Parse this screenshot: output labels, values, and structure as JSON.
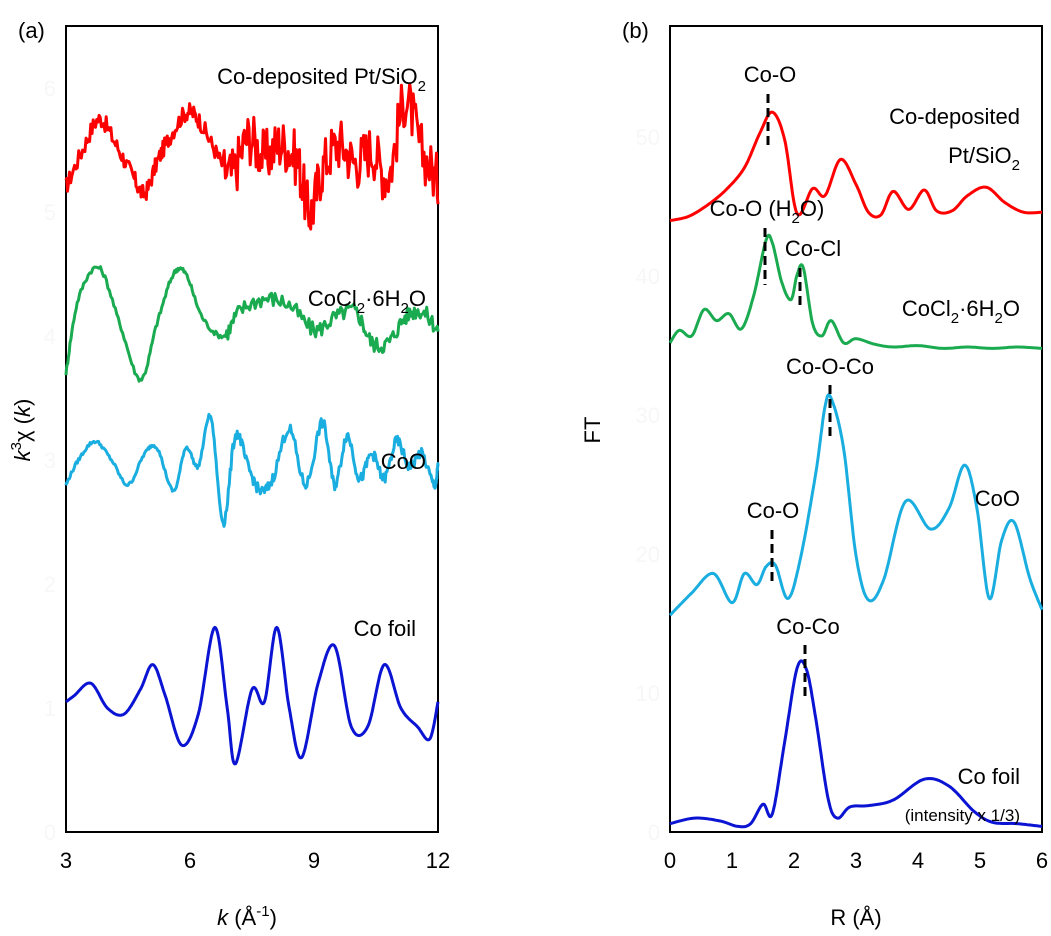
{
  "figure": {
    "panels": [
      {
        "panel_label": "(a)",
        "xlabel_italic": "k",
        "xlabel_rest": " (Å",
        "xlabel_sup": "-1",
        "xlabel_end": ")",
        "ylabel_pre": "k",
        "ylabel_sup": "3",
        "ylabel_mid": "χ (",
        "ylabel_k": "k",
        "ylabel_end": ")",
        "xticks": [
          "3",
          "6",
          "9",
          "12"
        ],
        "yticks": [
          "0",
          "1",
          "2",
          "3",
          "4",
          "5",
          "6"
        ],
        "curve_labels": [
          {
            "id": "co-pt",
            "parts": [
              {
                "t": "Co-deposited Pt/SiO"
              },
              {
                "t": "2",
                "sub": true
              }
            ]
          },
          {
            "id": "cocl2",
            "parts": [
              {
                "t": "CoCl"
              },
              {
                "t": "2",
                "sub": true
              },
              {
                "t": "·6H"
              },
              {
                "t": "2",
                "sub": true
              },
              {
                "t": "O"
              }
            ]
          },
          {
            "id": "coo",
            "parts": [
              {
                "t": "CoO"
              }
            ]
          },
          {
            "id": "cofoil",
            "parts": [
              {
                "t": "Co foil"
              }
            ]
          }
        ]
      },
      {
        "panel_label": "(b)",
        "xlabel": "R (Å)",
        "ylabel": "FT",
        "xticks": [
          "0",
          "1",
          "2",
          "3",
          "4",
          "5",
          "6"
        ],
        "yticks": [
          "0",
          "10",
          "20",
          "30",
          "40",
          "50"
        ],
        "curve_labels": [
          {
            "id": "co-pt-1",
            "parts": [
              {
                "t": "Co-deposited"
              }
            ]
          },
          {
            "id": "co-pt-2",
            "parts": [
              {
                "t": "Pt/SiO"
              },
              {
                "t": "2",
                "sub": true
              }
            ]
          },
          {
            "id": "cocl2",
            "parts": [
              {
                "t": "CoCl"
              },
              {
                "t": "2",
                "sub": true
              },
              {
                "t": "·6H"
              },
              {
                "t": "2",
                "sub": true
              },
              {
                "t": "O"
              }
            ]
          },
          {
            "id": "coo",
            "parts": [
              {
                "t": "CoO"
              }
            ]
          },
          {
            "id": "cofoil",
            "parts": [
              {
                "t": "Co foil"
              }
            ]
          },
          {
            "id": "cofoil-note",
            "parts": [
              {
                "t": "(intensity x 1/3)"
              }
            ]
          }
        ],
        "annotations": [
          {
            "id": "ann-coo-pt",
            "parts": [
              {
                "t": "Co-O"
              }
            ]
          },
          {
            "id": "ann-coo-h2o",
            "parts": [
              {
                "t": "Co-O (H"
              },
              {
                "t": "2",
                "sub": true
              },
              {
                "t": "O)"
              }
            ]
          },
          {
            "id": "ann-cocl",
            "parts": [
              {
                "t": "Co-Cl"
              }
            ]
          },
          {
            "id": "ann-cooco",
            "parts": [
              {
                "t": "Co-O-Co"
              }
            ]
          },
          {
            "id": "ann-coo-coo",
            "parts": [
              {
                "t": "Co-O"
              }
            ]
          },
          {
            "id": "ann-coco",
            "parts": [
              {
                "t": "Co-Co"
              }
            ]
          }
        ]
      }
    ]
  },
  "chart_data": [
    {
      "type": "line",
      "panel": "(a)",
      "xlim": [
        3,
        12
      ],
      "ylim": [
        0,
        6.5
      ],
      "grid": false,
      "series": [
        {
          "name": "Co-deposited Pt/SiO2",
          "color": "#ff0000",
          "noise": 0.1,
          "x": [
            3,
            3.4,
            3.8,
            4.2,
            4.6,
            4.9,
            5.2,
            5.5,
            5.9,
            6.2,
            6.6,
            7.0,
            7.4,
            7.8,
            8.2,
            8.6,
            8.9,
            9.2,
            9.6,
            10.0,
            10.4,
            10.8,
            11.2,
            11.6,
            12
          ],
          "y": [
            5.2,
            5.5,
            5.75,
            5.55,
            5.3,
            5.15,
            5.4,
            5.6,
            5.8,
            5.75,
            5.5,
            5.3,
            5.6,
            5.45,
            5.55,
            5.4,
            5.0,
            5.35,
            5.55,
            5.4,
            5.5,
            5.3,
            5.9,
            5.5,
            5.25
          ]
        },
        {
          "name": "CoCl2·6H2O",
          "color": "#1aaa50",
          "noise": 0.03,
          "x": [
            3,
            3.3,
            3.8,
            4.3,
            4.8,
            5.2,
            5.6,
            5.9,
            6.3,
            6.8,
            7.2,
            7.8,
            8.4,
            9.0,
            9.5,
            10.0,
            10.4,
            10.8,
            11.2,
            11.6,
            12
          ],
          "y": [
            3.7,
            4.3,
            4.55,
            4.1,
            3.65,
            4.1,
            4.5,
            4.5,
            4.15,
            4.0,
            4.2,
            4.3,
            4.25,
            4.05,
            4.15,
            4.2,
            3.95,
            3.95,
            4.15,
            4.2,
            4.05
          ]
        },
        {
          "name": "CoO",
          "color": "#1aaee0",
          "noise": 0.02,
          "x": [
            3,
            3.3,
            3.7,
            4.1,
            4.5,
            4.9,
            5.2,
            5.6,
            5.9,
            6.2,
            6.5,
            6.8,
            7.1,
            7.4,
            7.7,
            8.0,
            8.4,
            8.8,
            9.2,
            9.5,
            9.8,
            10.1,
            10.4,
            10.7,
            11.0,
            11.3,
            11.6,
            11.9,
            12
          ],
          "y": [
            2.8,
            3.0,
            3.15,
            3.0,
            2.8,
            3.05,
            3.1,
            2.75,
            3.1,
            2.95,
            3.35,
            2.5,
            3.2,
            2.95,
            2.75,
            2.85,
            3.25,
            2.8,
            3.3,
            2.8,
            3.2,
            2.85,
            3.05,
            2.85,
            3.15,
            2.95,
            3.05,
            2.8,
            2.95
          ]
        },
        {
          "name": "Co foil",
          "color": "#0a14d2",
          "noise": 0,
          "x": [
            3,
            3.2,
            3.6,
            4.0,
            4.4,
            4.8,
            5.1,
            5.4,
            5.8,
            6.2,
            6.6,
            6.9,
            7.1,
            7.5,
            7.8,
            8.1,
            8.4,
            8.7,
            9.1,
            9.5,
            9.9,
            10.3,
            10.7,
            11.1,
            11.5,
            11.8,
            12
          ],
          "y": [
            1.05,
            1.1,
            1.2,
            1.0,
            0.95,
            1.15,
            1.35,
            1.1,
            0.7,
            0.95,
            1.65,
            1.0,
            0.55,
            1.15,
            1.05,
            1.65,
            1.0,
            0.6,
            1.2,
            1.5,
            0.85,
            0.85,
            1.35,
            1.0,
            0.85,
            0.75,
            1.05
          ]
        }
      ]
    },
    {
      "type": "line",
      "panel": "(b)",
      "xlim": [
        0,
        6
      ],
      "ylim": [
        0,
        58
      ],
      "grid": false,
      "series": [
        {
          "name": "Co-deposited Pt/SiO2",
          "color": "#ff0000",
          "x": [
            0,
            0.3,
            0.6,
            0.9,
            1.2,
            1.45,
            1.65,
            1.85,
            2.05,
            2.3,
            2.5,
            2.75,
            3.0,
            3.2,
            3.4,
            3.6,
            3.85,
            4.1,
            4.3,
            4.55,
            4.8,
            5.1,
            5.4,
            5.7,
            6.0
          ],
          "y": [
            44,
            44.3,
            45.1,
            46.2,
            47.8,
            50.3,
            51.8,
            49.8,
            44.5,
            46.3,
            45.8,
            48.4,
            46.6,
            44.6,
            44.4,
            46.1,
            44.8,
            46.2,
            44.7,
            44.7,
            45.8,
            46.4,
            45.3,
            44.6,
            44.6
          ]
        },
        {
          "name": "CoCl2·6H2O",
          "color": "#1aaa50",
          "x": [
            0,
            0.15,
            0.35,
            0.55,
            0.75,
            0.95,
            1.15,
            1.35,
            1.55,
            1.65,
            1.8,
            1.95,
            2.05,
            2.15,
            2.3,
            2.45,
            2.6,
            2.8,
            3.0,
            3.3,
            3.6,
            4.0,
            4.4,
            4.8,
            5.2,
            5.6,
            6.0
          ],
          "y": [
            35.2,
            36.1,
            35.7,
            37.6,
            36.8,
            37.3,
            36.2,
            38.6,
            42.6,
            42.4,
            39.6,
            38.3,
            40.1,
            40.6,
            36.6,
            35.7,
            36.8,
            35.2,
            35.5,
            35.1,
            34.9,
            35.0,
            34.8,
            34.9,
            34.8,
            34.9,
            34.8
          ]
        },
        {
          "name": "CoO",
          "color": "#1aaee0",
          "x": [
            0,
            0.35,
            0.7,
            1.0,
            1.2,
            1.4,
            1.55,
            1.7,
            1.9,
            2.1,
            2.35,
            2.5,
            2.6,
            2.8,
            3.0,
            3.2,
            3.45,
            3.8,
            4.2,
            4.5,
            4.75,
            4.95,
            5.15,
            5.35,
            5.55,
            5.8,
            6.0
          ],
          "y": [
            15.6,
            17.2,
            18.6,
            16.5,
            18.6,
            17.8,
            19.1,
            19.2,
            16.8,
            19.6,
            25.8,
            30.6,
            31.2,
            27.6,
            19.9,
            16.7,
            18.2,
            23.8,
            21.8,
            23.3,
            26.4,
            23.3,
            16.8,
            21.0,
            22.3,
            18.3,
            16.0
          ]
        },
        {
          "name": "Co foil",
          "color": "#0a14d2",
          "x": [
            0,
            0.4,
            0.8,
            1.1,
            1.3,
            1.5,
            1.65,
            1.85,
            2.05,
            2.2,
            2.35,
            2.55,
            2.7,
            2.9,
            3.2,
            3.6,
            4.1,
            4.5,
            4.9,
            5.2,
            5.6,
            6.0
          ],
          "y": [
            0.6,
            1.0,
            0.8,
            0.4,
            0.6,
            2.0,
            1.3,
            6.5,
            11.8,
            11.7,
            8.2,
            2.4,
            1.0,
            1.8,
            1.9,
            2.3,
            3.8,
            3.3,
            1.5,
            0.7,
            0.6,
            0.4
          ]
        }
      ]
    }
  ]
}
